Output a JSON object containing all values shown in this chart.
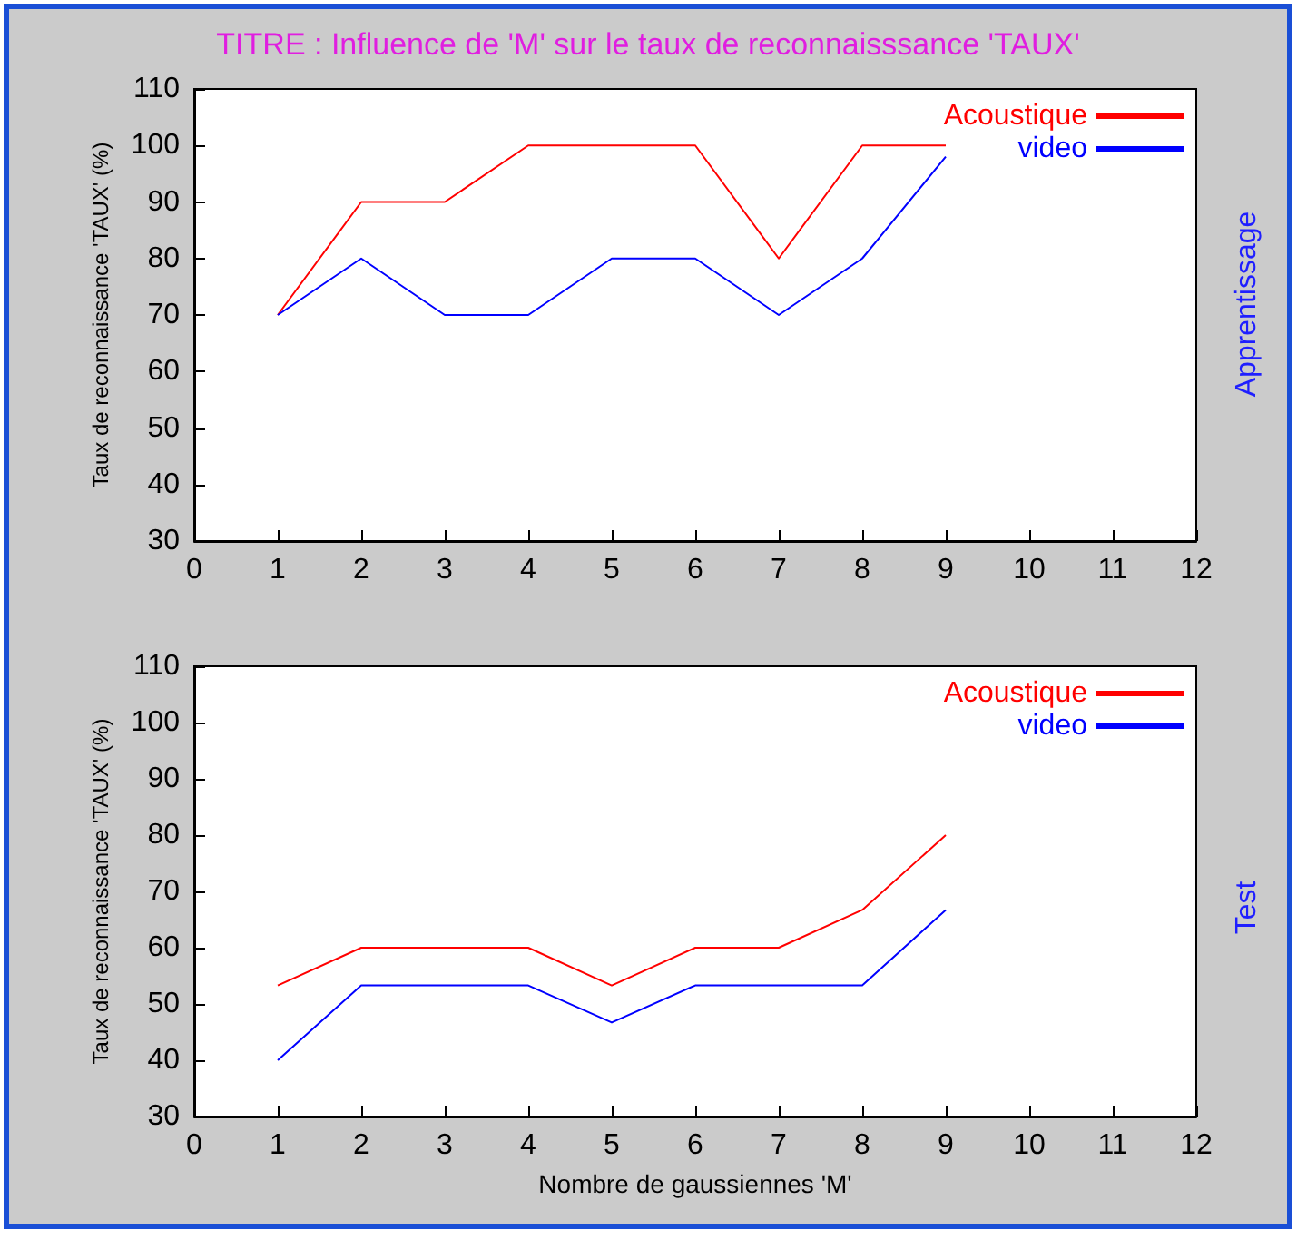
{
  "chart_data": [
    {
      "type": "line",
      "title": "TITRE : Influence de 'M' sur le taux de reconnaisssance 'TAUX'",
      "ylabel": "Taux de reconnaissance 'TAUX' (%)",
      "y2label": "Apprentissage",
      "x": [
        1,
        2,
        3,
        4,
        5,
        6,
        7,
        8,
        9
      ],
      "xlim": [
        0,
        12
      ],
      "xticks": [
        0,
        1,
        2,
        3,
        4,
        5,
        6,
        7,
        8,
        9,
        10,
        11,
        12
      ],
      "ylim": [
        30,
        110
      ],
      "yticks": [
        30,
        40,
        50,
        60,
        70,
        80,
        90,
        100,
        110
      ],
      "legend": "top right",
      "grid": false,
      "marker": "none",
      "series": [
        {
          "name": "Acoustique",
          "color": "#ff0000",
          "values": [
            70,
            90,
            90,
            100,
            100,
            100,
            80,
            100,
            100
          ]
        },
        {
          "name": "video",
          "color": "#0000ff",
          "values": [
            70,
            80,
            70,
            70,
            80,
            80,
            70,
            80,
            98
          ]
        }
      ]
    },
    {
      "type": "line",
      "xlabel": "Nombre de gaussiennes 'M'",
      "ylabel": "Taux de reconnaissance 'TAUX' (%)",
      "y2label": "Test",
      "x": [
        1,
        2,
        3,
        4,
        5,
        6,
        7,
        8,
        9
      ],
      "xlim": [
        0,
        12
      ],
      "xticks": [
        0,
        1,
        2,
        3,
        4,
        5,
        6,
        7,
        8,
        9,
        10,
        11,
        12
      ],
      "ylim": [
        30,
        110
      ],
      "yticks": [
        30,
        40,
        50,
        60,
        70,
        80,
        90,
        100,
        110
      ],
      "legend": "top right",
      "grid": false,
      "marker": "none",
      "series": [
        {
          "name": "Acoustique",
          "color": "#ff0000",
          "values": [
            53.3,
            60,
            60,
            60,
            53.3,
            60,
            60,
            66.7,
            80
          ]
        },
        {
          "name": "video",
          "color": "#0000ff",
          "values": [
            40,
            53.3,
            53.3,
            53.3,
            46.7,
            53.3,
            53.3,
            53.3,
            66.7
          ]
        }
      ]
    }
  ]
}
